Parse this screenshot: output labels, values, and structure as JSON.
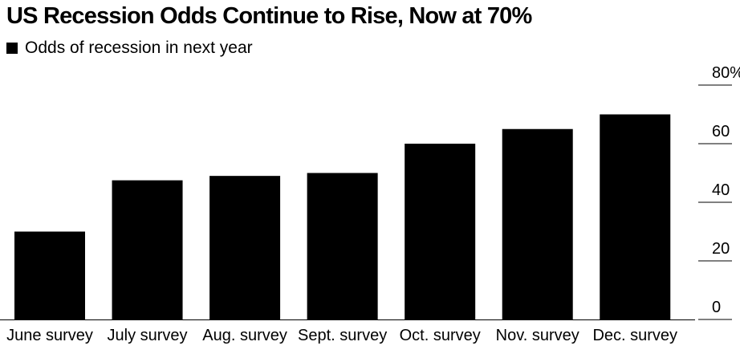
{
  "title": "US Recession Odds Continue to Rise, Now at 70%",
  "chart_data": {
    "type": "bar",
    "title": "US Recession Odds Continue to Rise, Now at 70%",
    "xlabel": "",
    "ylabel": "",
    "categories": [
      "June survey",
      "July survey",
      "Aug. survey",
      "Sept. survey",
      "Oct. survey",
      "Nov. survey",
      "Dec. survey"
    ],
    "series": [
      {
        "name": "Odds of recession in next year",
        "values": [
          30,
          47.5,
          49,
          50,
          60,
          65,
          70
        ],
        "color": "#000000"
      }
    ],
    "ylim": [
      0,
      80
    ],
    "yticks": [
      0,
      20,
      40,
      60,
      80
    ],
    "ytick_labels": [
      "0",
      "20",
      "40",
      "60",
      "80%"
    ],
    "y_axis_position": "right",
    "legend_position": "top-left",
    "grid": false
  }
}
